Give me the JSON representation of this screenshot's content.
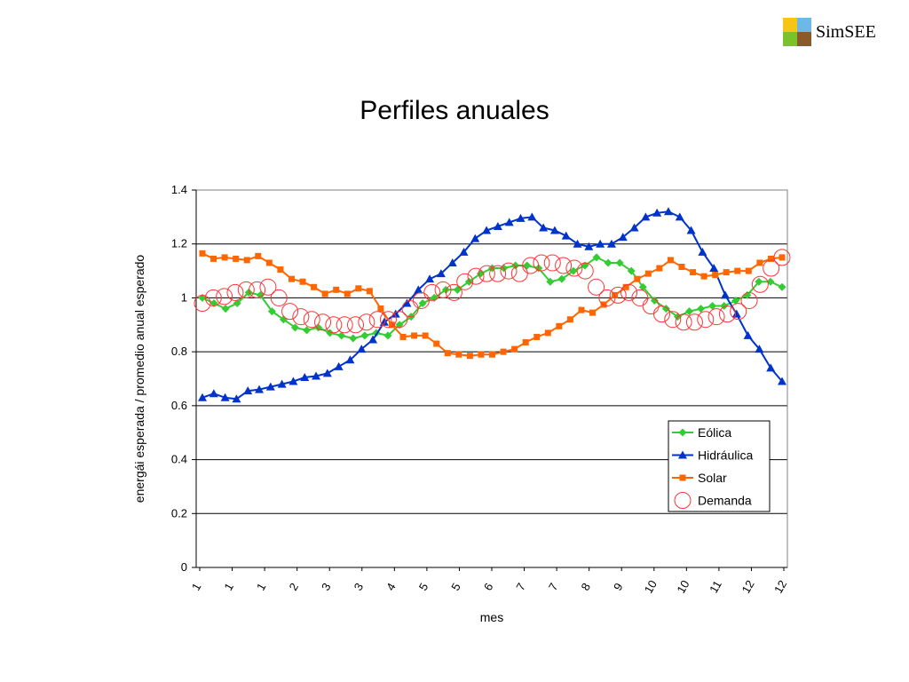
{
  "logo": {
    "text": "SimSEE",
    "colors": [
      "#F6C516",
      "#6CB8E9",
      "#7BC12A",
      "#8B5A2B"
    ],
    "icon": "simsee-logo-icon"
  },
  "slide": {
    "title": "Perfiles anuales"
  },
  "chart_data": {
    "type": "line",
    "title": "",
    "xlabel": "mes",
    "ylabel": "energái esperada / promedio anual esperado",
    "ylim": [
      0,
      1.4
    ],
    "yticks": [
      "0",
      "0.2",
      "0.4",
      "0.6",
      "0.8",
      "1",
      "1.2",
      "1.4"
    ],
    "x_tick_labels": [
      "1",
      "1",
      "1",
      "2",
      "3",
      "3",
      "4",
      "5",
      "5",
      "6",
      "7",
      "7",
      "8",
      "9",
      "10",
      "10",
      "11",
      "12",
      "12"
    ],
    "grid": true,
    "legend_position": "bottom-right",
    "series": [
      {
        "name": "Eólica",
        "color": "#33CC33",
        "marker": "diamond",
        "values": [
          1.0,
          0.98,
          0.96,
          0.98,
          1.02,
          1.01,
          0.95,
          0.92,
          0.89,
          0.88,
          0.89,
          0.87,
          0.86,
          0.85,
          0.86,
          0.87,
          0.86,
          0.9,
          0.93,
          0.98,
          1.0,
          1.03,
          1.03,
          1.06,
          1.09,
          1.11,
          1.11,
          1.12,
          1.12,
          1.11,
          1.06,
          1.07,
          1.1,
          1.12,
          1.15,
          1.13,
          1.13,
          1.1,
          1.04,
          0.99,
          0.96,
          0.93,
          0.95,
          0.96,
          0.97,
          0.97,
          0.99,
          1.01,
          1.06,
          1.06,
          1.04
        ]
      },
      {
        "name": "Hidráulica",
        "color": "#0033CC",
        "marker": "triangle",
        "values": [
          0.63,
          0.645,
          0.63,
          0.625,
          0.655,
          0.66,
          0.67,
          0.68,
          0.69,
          0.705,
          0.71,
          0.72,
          0.745,
          0.77,
          0.81,
          0.845,
          0.91,
          0.94,
          0.98,
          1.03,
          1.07,
          1.09,
          1.13,
          1.17,
          1.22,
          1.25,
          1.265,
          1.28,
          1.295,
          1.3,
          1.26,
          1.25,
          1.23,
          1.2,
          1.19,
          1.2,
          1.2,
          1.225,
          1.26,
          1.3,
          1.315,
          1.32,
          1.3,
          1.25,
          1.17,
          1.11,
          1.01,
          0.94,
          0.86,
          0.81,
          0.74,
          0.69
        ]
      },
      {
        "name": "Solar",
        "color": "#FF6600",
        "marker": "square",
        "values": [
          1.165,
          1.145,
          1.15,
          1.145,
          1.14,
          1.155,
          1.13,
          1.105,
          1.07,
          1.06,
          1.04,
          1.015,
          1.03,
          1.015,
          1.035,
          1.025,
          0.96,
          0.9,
          0.855,
          0.86,
          0.86,
          0.83,
          0.795,
          0.79,
          0.785,
          0.79,
          0.79,
          0.8,
          0.81,
          0.835,
          0.855,
          0.87,
          0.895,
          0.92,
          0.955,
          0.945,
          0.975,
          1.01,
          1.04,
          1.07,
          1.09,
          1.11,
          1.14,
          1.115,
          1.095,
          1.08,
          1.085,
          1.095,
          1.1,
          1.1,
          1.13,
          1.145,
          1.15
        ]
      },
      {
        "name": "Demanda",
        "color": "#FF3333",
        "marker": "circle",
        "values": [
          0.98,
          1.0,
          1.005,
          1.02,
          1.03,
          1.03,
          1.04,
          1.0,
          0.95,
          0.93,
          0.92,
          0.91,
          0.9,
          0.9,
          0.9,
          0.91,
          0.92,
          0.92,
          0.92,
          0.96,
          0.99,
          1.02,
          1.03,
          1.02,
          1.06,
          1.08,
          1.09,
          1.09,
          1.1,
          1.09,
          1.12,
          1.13,
          1.13,
          1.12,
          1.11,
          1.1,
          1.04,
          1.0,
          1.01,
          1.02,
          1.0,
          0.97,
          0.94,
          0.92,
          0.91,
          0.91,
          0.92,
          0.93,
          0.94,
          0.95,
          0.99,
          1.05,
          1.11,
          1.15
        ]
      }
    ]
  }
}
